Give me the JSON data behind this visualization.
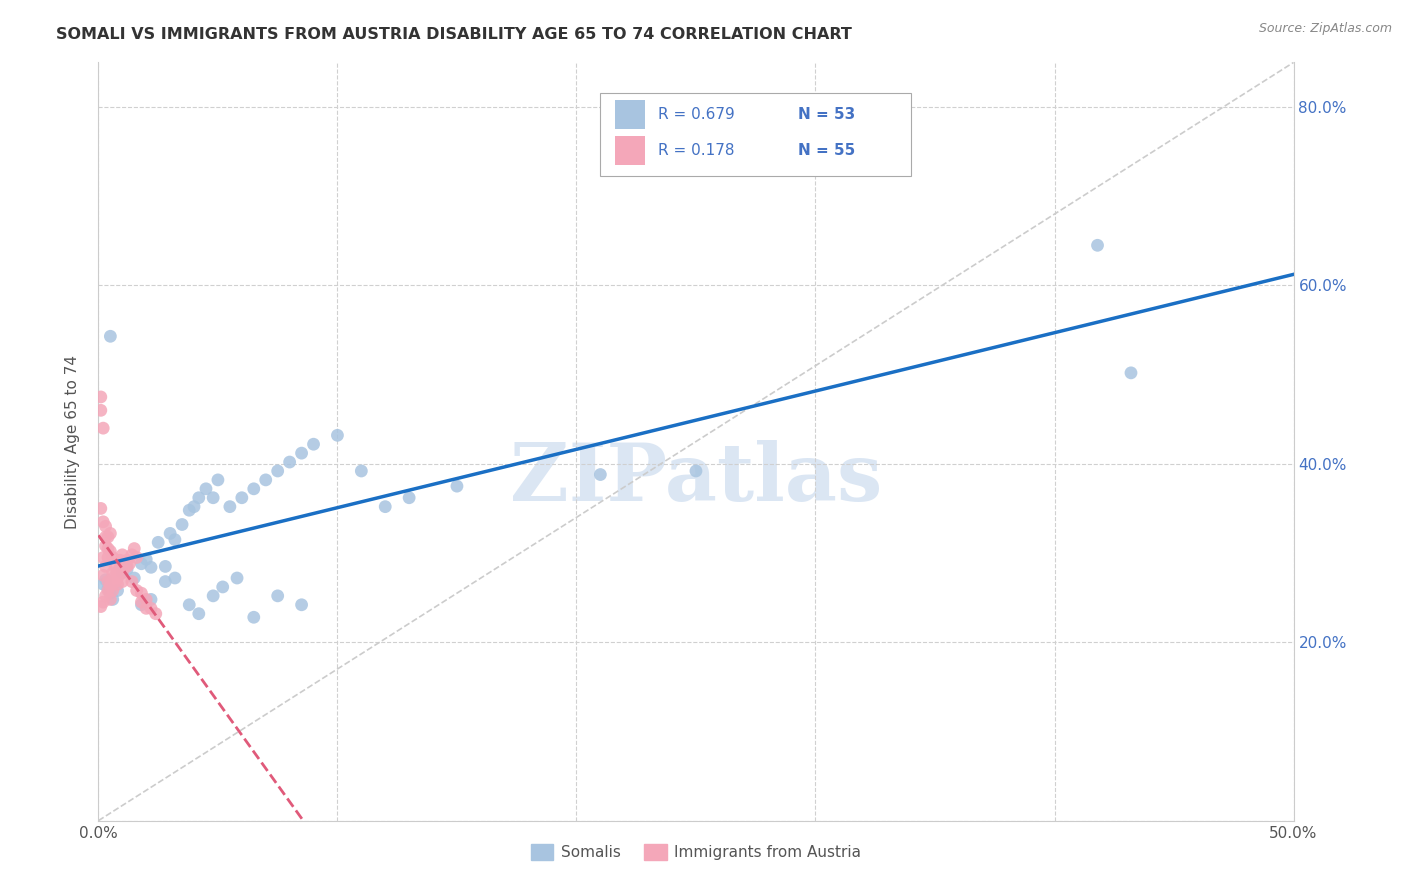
{
  "title": "SOMALI VS IMMIGRANTS FROM AUSTRIA DISABILITY AGE 65 TO 74 CORRELATION CHART",
  "source": "Source: ZipAtlas.com",
  "ylabel": "Disability Age 65 to 74",
  "xmin": 0.0,
  "xmax": 0.5,
  "ymin": 0.0,
  "ymax": 0.85,
  "somali_color": "#a8c4e0",
  "austria_color": "#f4a7b9",
  "somali_line_color": "#1a6fc4",
  "austria_line_color": "#e05a7a",
  "watermark_text": "ZIPatlas",
  "watermark_color": "#ccdcef",
  "R_somali": 0.679,
  "N_somali": 53,
  "R_austria": 0.178,
  "N_austria": 55,
  "legend_text_color": "#4472c4",
  "ytick_color": "#4472c4",
  "somali_x": [
    0.002,
    0.003,
    0.004,
    0.005,
    0.006,
    0.008,
    0.01,
    0.012,
    0.015,
    0.018,
    0.02,
    0.022,
    0.025,
    0.028,
    0.03,
    0.032,
    0.035,
    0.038,
    0.04,
    0.042,
    0.045,
    0.048,
    0.05,
    0.055,
    0.06,
    0.065,
    0.07,
    0.075,
    0.08,
    0.085,
    0.09,
    0.1,
    0.11,
    0.12,
    0.13,
    0.15,
    0.018,
    0.022,
    0.028,
    0.032,
    0.038,
    0.042,
    0.048,
    0.052,
    0.058,
    0.065,
    0.075,
    0.085,
    0.21,
    0.25,
    0.418,
    0.432,
    0.005
  ],
  "somali_y": [
    0.265,
    0.27,
    0.26,
    0.255,
    0.248,
    0.258,
    0.278,
    0.282,
    0.272,
    0.288,
    0.293,
    0.284,
    0.312,
    0.285,
    0.322,
    0.315,
    0.332,
    0.348,
    0.352,
    0.362,
    0.372,
    0.362,
    0.382,
    0.352,
    0.362,
    0.372,
    0.382,
    0.392,
    0.402,
    0.412,
    0.422,
    0.432,
    0.392,
    0.352,
    0.362,
    0.375,
    0.242,
    0.248,
    0.268,
    0.272,
    0.242,
    0.232,
    0.252,
    0.262,
    0.272,
    0.228,
    0.252,
    0.242,
    0.388,
    0.392,
    0.645,
    0.502,
    0.543
  ],
  "austria_x": [
    0.001,
    0.001,
    0.002,
    0.002,
    0.002,
    0.003,
    0.003,
    0.003,
    0.004,
    0.004,
    0.004,
    0.005,
    0.005,
    0.005,
    0.006,
    0.006,
    0.007,
    0.007,
    0.008,
    0.008,
    0.009,
    0.009,
    0.01,
    0.01,
    0.011,
    0.012,
    0.013,
    0.014,
    0.015,
    0.016,
    0.018,
    0.02,
    0.022,
    0.024,
    0.001,
    0.001,
    0.002,
    0.002,
    0.003,
    0.003,
    0.004,
    0.004,
    0.005,
    0.005,
    0.006,
    0.006,
    0.007,
    0.008,
    0.009,
    0.01,
    0.012,
    0.014,
    0.016,
    0.018,
    0.02
  ],
  "austria_y": [
    0.24,
    0.35,
    0.245,
    0.335,
    0.44,
    0.252,
    0.308,
    0.318,
    0.258,
    0.295,
    0.305,
    0.263,
    0.302,
    0.322,
    0.268,
    0.295,
    0.285,
    0.275,
    0.272,
    0.265,
    0.282,
    0.292,
    0.278,
    0.268,
    0.285,
    0.292,
    0.288,
    0.298,
    0.305,
    0.295,
    0.255,
    0.248,
    0.238,
    0.232,
    0.46,
    0.475,
    0.295,
    0.275,
    0.33,
    0.285,
    0.268,
    0.318,
    0.265,
    0.248,
    0.278,
    0.258,
    0.268,
    0.278,
    0.288,
    0.298,
    0.285,
    0.268,
    0.258,
    0.245,
    0.238
  ]
}
